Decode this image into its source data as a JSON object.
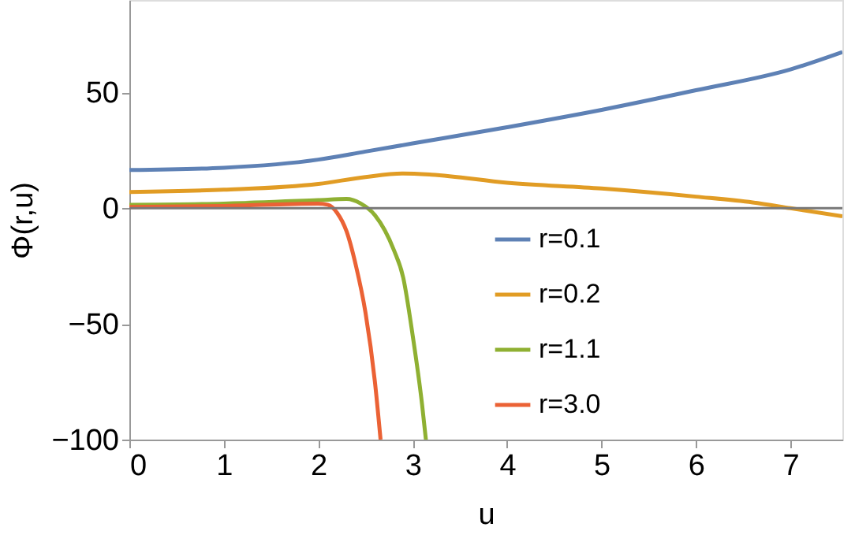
{
  "chart_data": {
    "type": "line",
    "xlabel": "u",
    "ylabel": "Φ(r,u)",
    "xlim": [
      0,
      7.55
    ],
    "ylim": [
      -100,
      90
    ],
    "xticks": [
      0,
      1,
      2,
      3,
      4,
      5,
      6,
      7
    ],
    "yticks": [
      -100,
      -50,
      0,
      50
    ],
    "grid": false,
    "legend": "bottom right",
    "line_style": "solid",
    "marker": "none",
    "ref_lines": [
      {
        "axis": "y",
        "value": 0,
        "color": "#777777"
      }
    ],
    "series": [
      {
        "name": "r=0.1",
        "color": "#5e81b5",
        "x": [
          0,
          1,
          2,
          2.5,
          3,
          4,
          5,
          6,
          7,
          7.55
        ],
        "values": [
          16.5,
          17.5,
          21,
          24.5,
          28,
          35,
          42.5,
          51,
          60,
          67.5
        ]
      },
      {
        "name": "r=0.2",
        "color": "#e19c24",
        "x": [
          0,
          1,
          2,
          2.5,
          2.9,
          3.2,
          4,
          5,
          6,
          6.6,
          7,
          7.55
        ],
        "values": [
          7,
          8,
          10.5,
          13.5,
          15,
          14.5,
          11,
          8.5,
          5,
          2.5,
          0,
          -3.5
        ]
      },
      {
        "name": "r=1.1",
        "color": "#8fb032",
        "x": [
          0,
          1,
          2,
          2.3,
          2.45,
          2.6,
          2.8,
          2.9,
          3.0,
          3.1,
          3.14
        ],
        "values": [
          1.5,
          2,
          3.5,
          4,
          2,
          -3,
          -18,
          -30,
          -55,
          -85,
          -100
        ]
      },
      {
        "name": "r=3.0",
        "color": "#eb6235",
        "x": [
          0,
          1,
          2,
          2.1,
          2.2,
          2.3,
          2.4,
          2.5,
          2.6,
          2.66
        ],
        "values": [
          0.5,
          1,
          2,
          1.5,
          -2,
          -10,
          -25,
          -45,
          -75,
          -100
        ]
      }
    ]
  }
}
